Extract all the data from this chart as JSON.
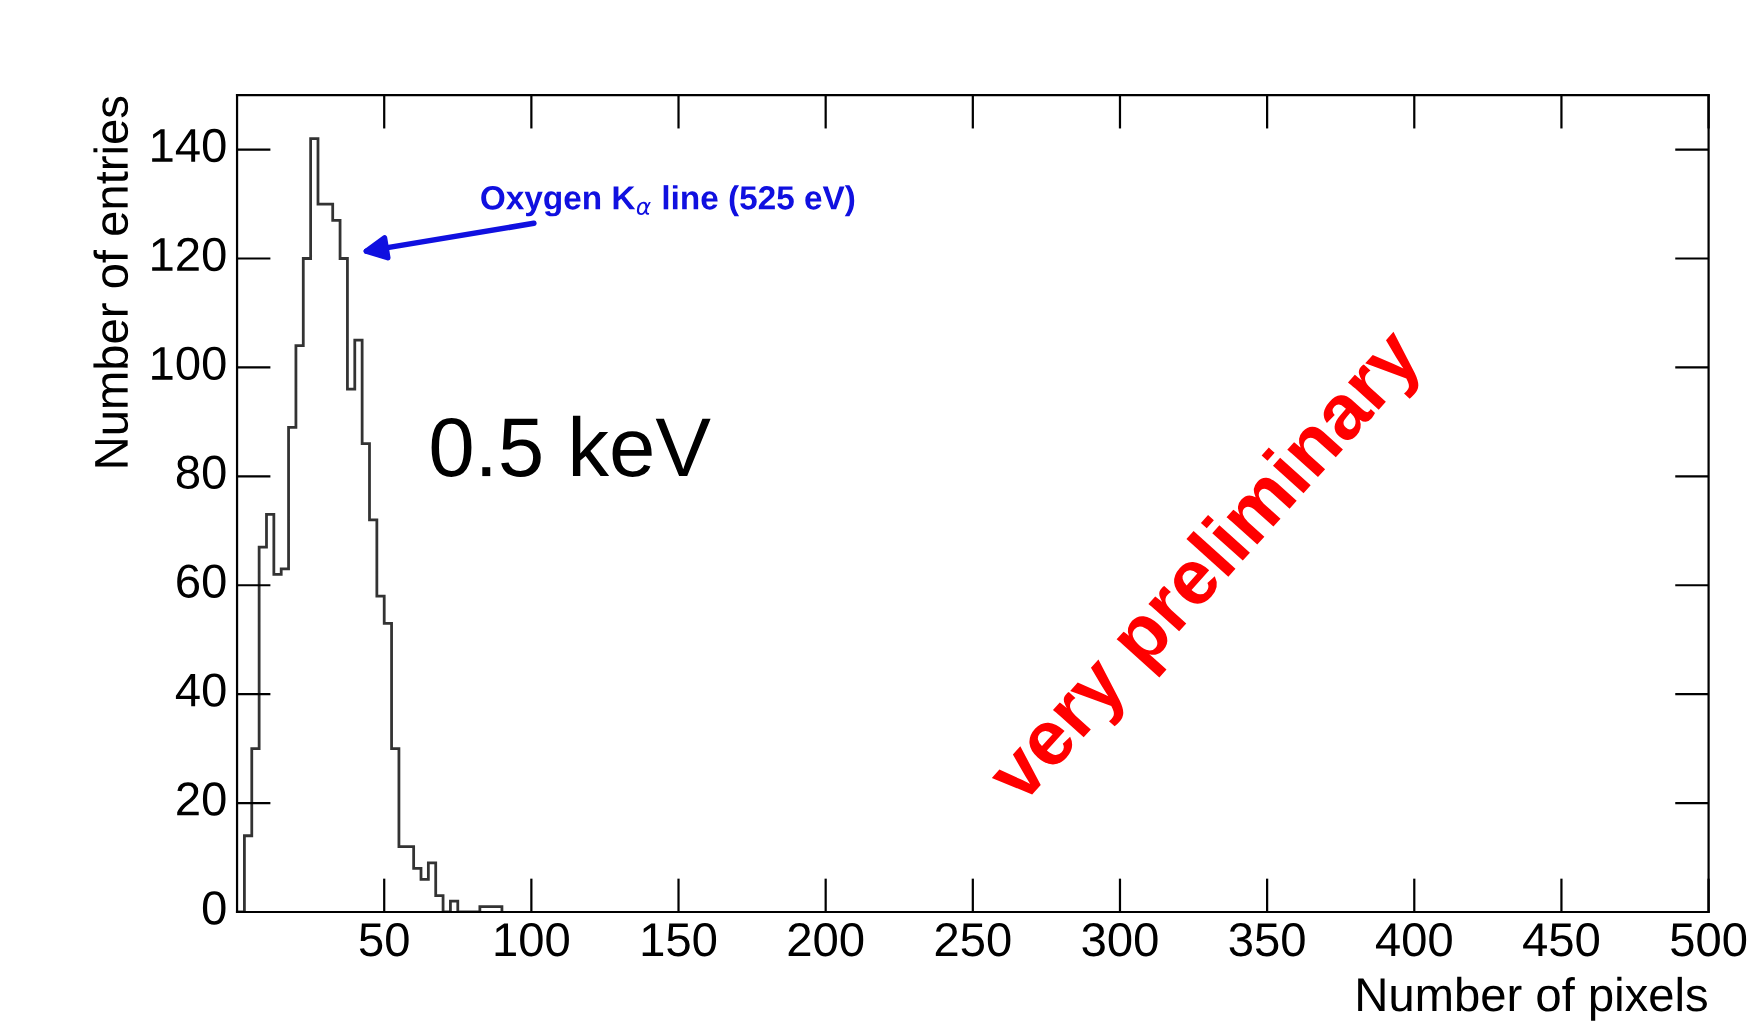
{
  "chart_data": {
    "type": "histogram",
    "xlabel": "Number of pixels",
    "ylabel": "Number of entries",
    "bins": [
      0,
      2.5,
      5,
      7.5,
      10,
      12.5,
      15,
      17.5,
      20,
      22.5,
      25,
      27.5,
      30,
      32.5,
      35,
      37.5,
      40,
      42.5,
      45,
      47.5,
      50,
      52.5,
      55,
      57.5,
      60,
      62.5,
      65,
      67.5,
      70,
      72.5,
      75,
      77.5,
      80,
      82.5,
      85,
      87.5,
      90
    ],
    "values": [
      0,
      14,
      30,
      67,
      73,
      62,
      63,
      89,
      104,
      120,
      142,
      130,
      130,
      127,
      120,
      96,
      105,
      86,
      72,
      58,
      53,
      30,
      12,
      12,
      8,
      6,
      9,
      3,
      0,
      2,
      0,
      0,
      0,
      1,
      1,
      1
    ],
    "color": "#333333",
    "xlim": [
      0,
      500
    ],
    "xticks": [
      50,
      100,
      150,
      200,
      250,
      300,
      350,
      400,
      450,
      500
    ],
    "ylim": [
      0,
      150
    ],
    "yticks": [
      0,
      20,
      40,
      60,
      80,
      100,
      120,
      140
    ],
    "grid": false,
    "annotations": [
      {
        "text": "Oxygen K$_{α}$ line (525 eV)",
        "x": 40,
        "y": 121
      },
      "0.5 keV",
      "very preliminary"
    ]
  }
}
